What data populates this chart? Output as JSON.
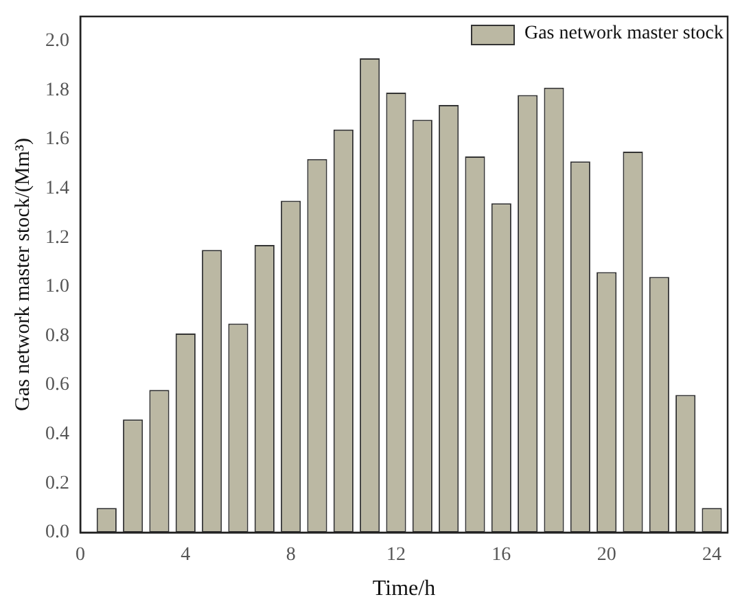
{
  "chart_data": {
    "type": "bar",
    "xlabel": "Time/h",
    "ylabel": "Gas network master stock/(Mm³)",
    "x": [
      1,
      2,
      3,
      4,
      5,
      6,
      7,
      8,
      9,
      10,
      11,
      12,
      13,
      14,
      15,
      16,
      17,
      18,
      19,
      20,
      21,
      22,
      23,
      24
    ],
    "series": [
      {
        "name": "Gas network master stock",
        "color": "#bbb8a3",
        "values": [
          0.1,
          0.46,
          0.58,
          0.81,
          1.15,
          0.85,
          1.17,
          1.35,
          1.52,
          1.64,
          1.93,
          1.79,
          1.68,
          1.74,
          1.53,
          1.34,
          1.78,
          1.81,
          1.51,
          1.06,
          1.55,
          1.04,
          0.56,
          0.1
        ]
      }
    ],
    "xlim": [
      0,
      24.6
    ],
    "xticks": [
      0,
      4,
      8,
      12,
      16,
      20,
      24
    ],
    "ylim": [
      0,
      2.1
    ],
    "yticks": [
      {
        "value": 0,
        "label": "0.0"
      },
      0.2,
      0.4,
      0.6,
      0.8,
      {
        "value": 1,
        "label": "1.0"
      },
      1.2,
      1.4,
      1.6,
      1.8,
      {
        "value": 2,
        "label": "2.0"
      }
    ],
    "grid": false,
    "legend": "top right"
  }
}
